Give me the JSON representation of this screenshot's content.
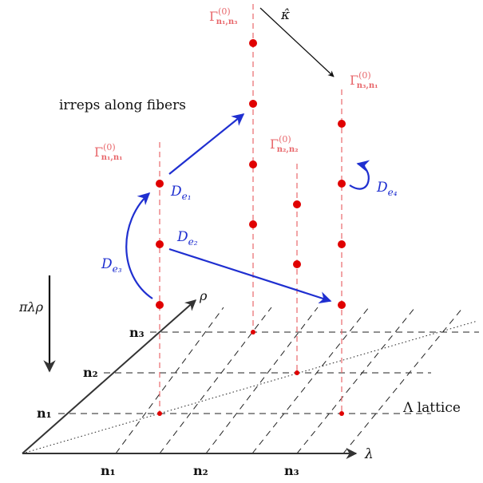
{
  "labels": {
    "irreps_along_fibers": "irreps along fibers",
    "gamma_sym": "Γ",
    "gamma_sup": "(0)",
    "gamma_n1n1_sub": "n₁,n₁",
    "gamma_n1n3_sub": "n₁,n₃",
    "gamma_n2n2_sub": "n₂,n₂",
    "gamma_n3n1_sub": "n₃,n₁",
    "kappa_hat": "κ̂",
    "D_sym": "D",
    "De1_sub": "e₁",
    "De2_sub": "e₂",
    "De3_sub": "e₃",
    "De4_sub": "e₄",
    "rho": "ρ",
    "lambda": "λ",
    "projection": "πλρ",
    "lattice": "Λ lattice",
    "rho_tick_n1": "n₁",
    "rho_tick_n2": "n₂",
    "rho_tick_n3": "n₃",
    "lambda_tick_n1": "n₁",
    "lambda_tick_n2": "n₂",
    "lambda_tick_n3": "n₃"
  },
  "colors": {
    "fiber": "#e8676b",
    "dot": "#e00000",
    "arrow_blue": "#1f2fd0",
    "axis": "#333333",
    "lattice": "#222222"
  }
}
